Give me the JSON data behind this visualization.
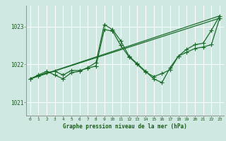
{
  "title": "Graphe pression niveau de la mer (hPa)",
  "bg_color": "#cfe8e2",
  "grid_color": "#b0d8d0",
  "line_color": "#1a6b2a",
  "xlim": [
    -0.5,
    23.5
  ],
  "ylim": [
    1020.65,
    1023.55
  ],
  "yticks": [
    1021,
    1022,
    1023
  ],
  "xticks": [
    0,
    1,
    2,
    3,
    4,
    5,
    6,
    7,
    8,
    9,
    10,
    11,
    12,
    13,
    14,
    15,
    16,
    17,
    18,
    19,
    20,
    21,
    22,
    23
  ],
  "lines": [
    {
      "x": [
        0,
        1,
        2,
        3,
        4,
        5,
        6,
        7,
        8,
        9,
        10,
        11,
        12,
        13,
        14,
        15,
        16,
        17,
        18,
        19,
        20,
        21,
        22,
        23
      ],
      "y": [
        1021.62,
        1021.72,
        1021.82,
        1021.72,
        1021.62,
        1021.78,
        1021.82,
        1021.92,
        1022.05,
        1023.05,
        1022.92,
        1022.62,
        1022.22,
        1022.02,
        1021.82,
        1021.62,
        1021.52,
        1021.92,
        1022.22,
        1022.4,
        1022.52,
        1022.56,
        1022.9,
        1023.28
      ]
    },
    {
      "x": [
        0,
        1,
        2,
        3,
        4,
        5,
        6,
        7,
        8,
        9,
        10,
        11,
        12,
        13,
        14,
        15,
        16,
        17,
        18,
        19,
        20,
        21,
        22,
        23
      ],
      "y": [
        1021.62,
        1021.7,
        1021.78,
        1021.82,
        1021.72,
        1021.84,
        1021.84,
        1021.9,
        1021.96,
        1022.92,
        1022.88,
        1022.5,
        1022.2,
        1022.0,
        1021.8,
        1021.68,
        1021.76,
        1021.86,
        1022.22,
        1022.32,
        1022.42,
        1022.46,
        1022.52,
        1023.22
      ]
    },
    {
      "x": [
        0,
        23
      ],
      "y": [
        1021.62,
        1023.28
      ]
    },
    {
      "x": [
        0,
        23
      ],
      "y": [
        1021.62,
        1023.22
      ]
    }
  ],
  "marker": "+",
  "markersize": 4,
  "linewidth": 0.9
}
